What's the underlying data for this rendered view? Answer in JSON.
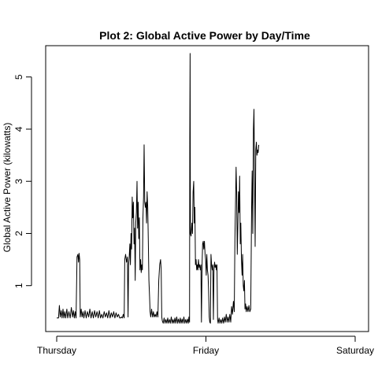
{
  "chart_data": {
    "type": "line",
    "title": "Plot 2: Global Active Power by Day/Time",
    "xlabel": "",
    "ylabel": "Global Active Power (kilowatts)",
    "x_ticks": [
      "Thursday",
      "Friday",
      "Saturday"
    ],
    "y_ticks": [
      1,
      2,
      3,
      4,
      5
    ],
    "xlim": [
      0,
      2
    ],
    "ylim": [
      0.12,
      5.6
    ],
    "x_unit": "days since Thursday 00:00",
    "series": [
      {
        "points": [
          [
            0.0,
            0.38
          ],
          [
            0.012,
            0.38
          ],
          [
            0.018,
            0.62
          ],
          [
            0.024,
            0.4
          ],
          [
            0.03,
            0.52
          ],
          [
            0.036,
            0.38
          ],
          [
            0.042,
            0.55
          ],
          [
            0.048,
            0.38
          ],
          [
            0.054,
            0.5
          ],
          [
            0.06,
            0.38
          ],
          [
            0.068,
            0.55
          ],
          [
            0.074,
            0.38
          ],
          [
            0.082,
            0.5
          ],
          [
            0.09,
            0.38
          ],
          [
            0.098,
            0.58
          ],
          [
            0.106,
            0.4
          ],
          [
            0.112,
            0.52
          ],
          [
            0.118,
            0.38
          ],
          [
            0.124,
            0.5
          ],
          [
            0.13,
            0.38
          ],
          [
            0.136,
            1.55
          ],
          [
            0.142,
            1.6
          ],
          [
            0.146,
            1.45
          ],
          [
            0.15,
            1.62
          ],
          [
            0.154,
            1.5
          ],
          [
            0.158,
            0.4
          ],
          [
            0.164,
            0.55
          ],
          [
            0.17,
            0.4
          ],
          [
            0.176,
            0.5
          ],
          [
            0.182,
            0.38
          ],
          [
            0.19,
            0.52
          ],
          [
            0.198,
            0.38
          ],
          [
            0.206,
            0.5
          ],
          [
            0.214,
            0.4
          ],
          [
            0.222,
            0.55
          ],
          [
            0.23,
            0.38
          ],
          [
            0.238,
            0.5
          ],
          [
            0.246,
            0.38
          ],
          [
            0.254,
            0.52
          ],
          [
            0.262,
            0.4
          ],
          [
            0.27,
            0.5
          ],
          [
            0.278,
            0.38
          ],
          [
            0.286,
            0.52
          ],
          [
            0.294,
            0.38
          ],
          [
            0.302,
            0.45
          ],
          [
            0.31,
            0.38
          ],
          [
            0.318,
            0.5
          ],
          [
            0.326,
            0.4
          ],
          [
            0.334,
            0.48
          ],
          [
            0.342,
            0.38
          ],
          [
            0.35,
            0.52
          ],
          [
            0.358,
            0.38
          ],
          [
            0.366,
            0.48
          ],
          [
            0.374,
            0.4
          ],
          [
            0.382,
            0.5
          ],
          [
            0.39,
            0.38
          ],
          [
            0.398,
            0.48
          ],
          [
            0.406,
            0.4
          ],
          [
            0.414,
            0.45
          ],
          [
            0.422,
            0.38
          ],
          [
            0.428,
            0.38
          ],
          [
            0.434,
            0.4
          ],
          [
            0.44,
            0.38
          ],
          [
            0.446,
            0.45
          ],
          [
            0.452,
            0.38
          ],
          [
            0.456,
            1.5
          ],
          [
            0.462,
            1.6
          ],
          [
            0.468,
            1.45
          ],
          [
            0.474,
            1.55
          ],
          [
            0.478,
            0.4
          ],
          [
            0.482,
            1.4
          ],
          [
            0.486,
            1.55
          ],
          [
            0.49,
            1.8
          ],
          [
            0.494,
            1.4
          ],
          [
            0.498,
            2.0
          ],
          [
            0.502,
            1.7
          ],
          [
            0.506,
            2.7
          ],
          [
            0.51,
            2.3
          ],
          [
            0.514,
            2.6
          ],
          [
            0.518,
            1.8
          ],
          [
            0.522,
            2.1
          ],
          [
            0.526,
            1.1
          ],
          [
            0.53,
            2.2
          ],
          [
            0.534,
            2.4
          ],
          [
            0.538,
            3.0
          ],
          [
            0.542,
            2.1
          ],
          [
            0.546,
            2.6
          ],
          [
            0.55,
            1.9
          ],
          [
            0.554,
            2.3
          ],
          [
            0.558,
            1.3
          ],
          [
            0.562,
            1.5
          ],
          [
            0.566,
            1.25
          ],
          [
            0.57,
            1.4
          ],
          [
            0.574,
            1.3
          ],
          [
            0.578,
            2.3
          ],
          [
            0.582,
            2.7
          ],
          [
            0.586,
            3.7
          ],
          [
            0.59,
            2.6
          ],
          [
            0.594,
            2.5
          ],
          [
            0.598,
            2.6
          ],
          [
            0.602,
            2.2
          ],
          [
            0.606,
            2.8
          ],
          [
            0.61,
            2.5
          ],
          [
            0.614,
            1.8
          ],
          [
            0.618,
            1.1
          ],
          [
            0.622,
            0.8
          ],
          [
            0.626,
            0.5
          ],
          [
            0.63,
            0.4
          ],
          [
            0.636,
            0.55
          ],
          [
            0.642,
            0.4
          ],
          [
            0.648,
            0.5
          ],
          [
            0.654,
            0.4
          ],
          [
            0.66,
            0.45
          ],
          [
            0.666,
            0.4
          ],
          [
            0.672,
            0.5
          ],
          [
            0.678,
            0.4
          ],
          [
            0.684,
            1.1
          ],
          [
            0.69,
            1.4
          ],
          [
            0.696,
            1.5
          ],
          [
            0.7,
            1.3
          ],
          [
            0.704,
            0.4
          ],
          [
            0.708,
            0.32
          ],
          [
            0.714,
            0.28
          ],
          [
            0.72,
            0.38
          ],
          [
            0.726,
            0.28
          ],
          [
            0.732,
            0.35
          ],
          [
            0.738,
            0.28
          ],
          [
            0.744,
            0.38
          ],
          [
            0.75,
            0.28
          ],
          [
            0.756,
            0.35
          ],
          [
            0.762,
            0.28
          ],
          [
            0.768,
            0.4
          ],
          [
            0.774,
            0.28
          ],
          [
            0.78,
            0.35
          ],
          [
            0.786,
            0.28
          ],
          [
            0.792,
            0.38
          ],
          [
            0.798,
            0.28
          ],
          [
            0.804,
            0.4
          ],
          [
            0.81,
            0.28
          ],
          [
            0.816,
            0.36
          ],
          [
            0.822,
            0.28
          ],
          [
            0.828,
            0.38
          ],
          [
            0.834,
            0.28
          ],
          [
            0.84,
            0.36
          ],
          [
            0.846,
            0.28
          ],
          [
            0.852,
            0.4
          ],
          [
            0.858,
            0.28
          ],
          [
            0.864,
            0.35
          ],
          [
            0.87,
            0.28
          ],
          [
            0.876,
            0.36
          ],
          [
            0.882,
            0.28
          ],
          [
            0.886,
            0.4
          ],
          [
            0.89,
            0.3
          ],
          [
            0.892,
            3.8
          ],
          [
            0.894,
            5.45
          ],
          [
            0.896,
            2.0
          ],
          [
            0.9,
            1.95
          ],
          [
            0.906,
            2.2
          ],
          [
            0.91,
            2.0
          ],
          [
            0.914,
            2.8
          ],
          [
            0.918,
            3.0
          ],
          [
            0.922,
            2.2
          ],
          [
            0.926,
            2.5
          ],
          [
            0.93,
            1.4
          ],
          [
            0.934,
            1.5
          ],
          [
            0.938,
            1.3
          ],
          [
            0.942,
            1.4
          ],
          [
            0.946,
            1.3
          ],
          [
            0.95,
            1.5
          ],
          [
            0.954,
            1.35
          ],
          [
            0.958,
            1.4
          ],
          [
            0.962,
            1.3
          ],
          [
            0.966,
            1.4
          ],
          [
            0.97,
            0.3
          ],
          [
            0.974,
            1.4
          ],
          [
            0.978,
            1.8
          ],
          [
            0.982,
            1.85
          ],
          [
            0.986,
            1.7
          ],
          [
            0.99,
            1.85
          ],
          [
            0.994,
            1.6
          ],
          [
            0.998,
            1.5
          ],
          [
            1.002,
            1.2
          ],
          [
            1.006,
            1.6
          ],
          [
            1.01,
            1.3
          ],
          [
            1.014,
            1.2
          ],
          [
            1.018,
            0.9
          ],
          [
            1.022,
            0.4
          ],
          [
            1.026,
            0.3
          ],
          [
            1.03,
            0.28
          ],
          [
            1.034,
            1.6
          ],
          [
            1.038,
            1.4
          ],
          [
            1.042,
            1.3
          ],
          [
            1.046,
            1.4
          ],
          [
            1.05,
            0.35
          ],
          [
            1.054,
            1.3
          ],
          [
            1.058,
            1.45
          ],
          [
            1.062,
            1.35
          ],
          [
            1.066,
            1.4
          ],
          [
            1.07,
            1.3
          ],
          [
            1.074,
            1.4
          ],
          [
            1.078,
            0.35
          ],
          [
            1.082,
            0.28
          ],
          [
            1.088,
            0.38
          ],
          [
            1.094,
            0.28
          ],
          [
            1.1,
            0.35
          ],
          [
            1.106,
            0.28
          ],
          [
            1.112,
            0.38
          ],
          [
            1.118,
            0.28
          ],
          [
            1.124,
            0.4
          ],
          [
            1.13,
            0.3
          ],
          [
            1.136,
            0.45
          ],
          [
            1.142,
            0.3
          ],
          [
            1.148,
            0.4
          ],
          [
            1.154,
            0.3
          ],
          [
            1.16,
            0.45
          ],
          [
            1.166,
            0.3
          ],
          [
            1.172,
            0.6
          ],
          [
            1.178,
            0.45
          ],
          [
            1.184,
            0.7
          ],
          [
            1.19,
            0.5
          ],
          [
            1.194,
            1.9
          ],
          [
            1.198,
            2.5
          ],
          [
            1.202,
            3.27
          ],
          [
            1.206,
            2.8
          ],
          [
            1.21,
            1.6
          ],
          [
            1.214,
            2.2
          ],
          [
            1.218,
            2.8
          ],
          [
            1.222,
            2.4
          ],
          [
            1.226,
            3.1
          ],
          [
            1.23,
            1.8
          ],
          [
            1.234,
            2.2
          ],
          [
            1.238,
            1.5
          ],
          [
            1.242,
            1.2
          ],
          [
            1.246,
            1.6
          ],
          [
            1.25,
            1.0
          ],
          [
            1.254,
            0.9
          ],
          [
            1.258,
            1.1
          ],
          [
            1.262,
            0.55
          ],
          [
            1.266,
            0.65
          ],
          [
            1.27,
            0.5
          ],
          [
            1.276,
            0.6
          ],
          [
            1.282,
            0.5
          ],
          [
            1.288,
            0.62
          ],
          [
            1.294,
            0.5
          ],
          [
            1.3,
            0.55
          ],
          [
            1.306,
            2.5
          ],
          [
            1.31,
            3.2
          ],
          [
            1.314,
            2.0
          ],
          [
            1.318,
            4.0
          ],
          [
            1.322,
            4.38
          ],
          [
            1.326,
            3.0
          ],
          [
            1.33,
            1.75
          ],
          [
            1.334,
            3.6
          ],
          [
            1.338,
            3.75
          ],
          [
            1.342,
            3.5
          ],
          [
            1.346,
            3.6
          ],
          [
            1.35,
            3.55
          ],
          [
            1.354,
            3.7
          ]
        ]
      }
    ]
  }
}
